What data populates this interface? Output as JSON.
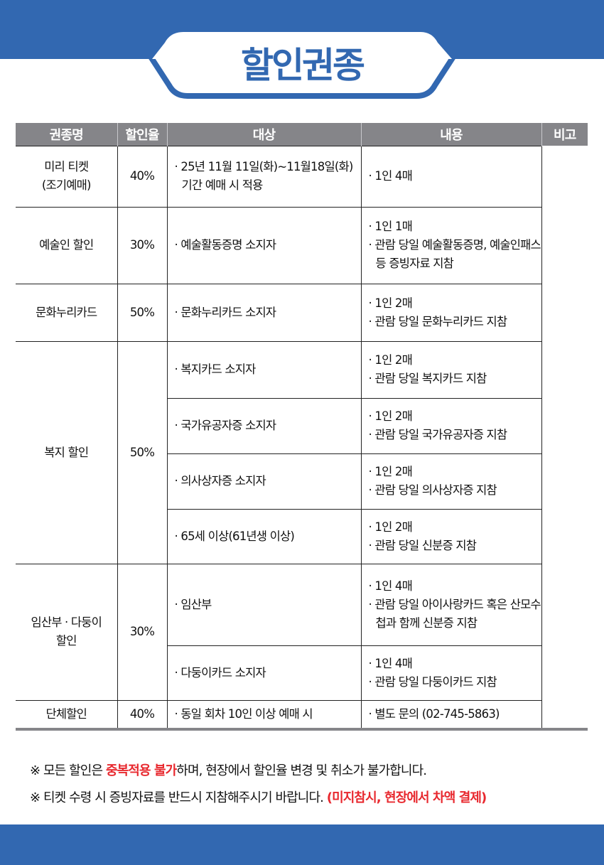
{
  "title": "할인권종",
  "colors": {
    "brand_blue": "#3268b1",
    "header_gray": "#858589",
    "highlight_red": "#e8282e"
  },
  "table": {
    "headers": [
      "권종명",
      "할인율",
      "대상",
      "내용",
      "비고"
    ],
    "rows": [
      {
        "name": "미리 티켓\n(조기예매)",
        "rate": "40%",
        "target": [
          "· 25년 11월 11일(화)~11월18일(화)",
          "기간 예매 시 적용"
        ],
        "content": [
          "· 1인 4매"
        ]
      },
      {
        "name": "예술인 할인",
        "rate": "30%",
        "target": [
          "· 예술활동증명 소지자"
        ],
        "content": [
          "· 1인 1매",
          "· 관람 당일 예술활동증명, 예술인패스 등 증빙자료 지참"
        ]
      },
      {
        "name": "문화누리카드",
        "rate": "50%",
        "target": [
          "· 문화누리카드 소지자"
        ],
        "content": [
          "· 1인 2매",
          "· 관람 당일 문화누리카드 지참"
        ]
      },
      {
        "name": "복지 할인",
        "rate": "50%",
        "subrows": [
          {
            "target": "· 복지카드 소지자",
            "content": [
              "· 1인 2매",
              "· 관람 당일 복지카드 지참"
            ]
          },
          {
            "target": "· 국가유공자증 소지자",
            "content": [
              "· 1인 2매",
              "· 관람 당일 국가유공자증 지참"
            ]
          },
          {
            "target": "· 의사상자증 소지자",
            "content": [
              "· 1인 2매",
              "· 관람 당일 의사상자증 지참"
            ]
          },
          {
            "target": "· 65세 이상(61년생 이상)",
            "content": [
              "· 1인 2매",
              "· 관람 당일 신분증 지참"
            ]
          }
        ]
      },
      {
        "name": "임산부 · 다둥이\n할인",
        "rate": "30%",
        "subrows": [
          {
            "target": "· 임산부",
            "content": [
              "· 1인 4매",
              "· 관람 당일 아이사랑카드 혹은 산모수첩과 함께 신분증 지참"
            ]
          },
          {
            "target": "· 다둥이카드 소지자",
            "content": [
              "· 1인 4매",
              "· 관람 당일 다둥이카드 지참"
            ]
          }
        ]
      },
      {
        "name": "단체할인",
        "rate": "40%",
        "target": [
          "· 동일 회차 10인 이상 예매 시"
        ],
        "content": [
          "· 별도 문의 (02-745-5863)"
        ]
      }
    ]
  },
  "notes": [
    {
      "prefix": "※ 모든 할인은 ",
      "red": "중복적용 불가",
      "suffix": "하며, 현장에서 할인율 변경 및 취소가 불가합니다."
    },
    {
      "prefix": "※ 티켓 수령 시 증빙자료를 반드시 지참해주시기 바랍니다. ",
      "red": "(미지참시, 현장에서 차액 결제)",
      "suffix": ""
    }
  ]
}
